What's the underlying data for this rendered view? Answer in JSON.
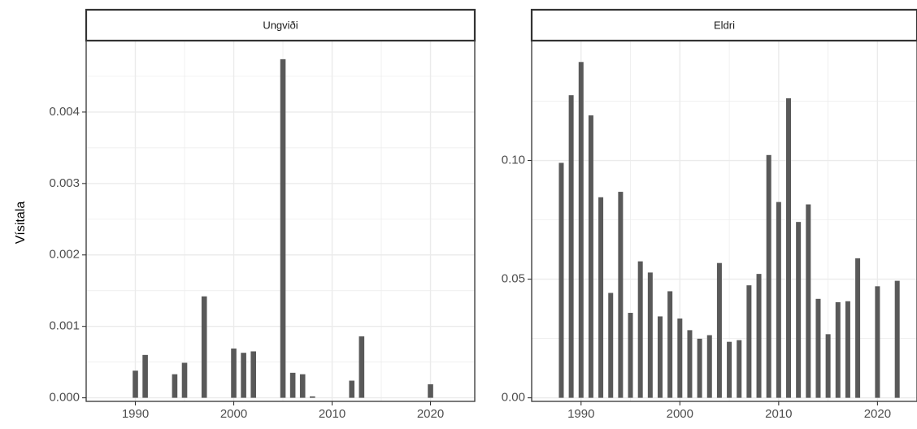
{
  "chart_data": {
    "type": "bar",
    "ylabel": "Vísitala",
    "xlabel": "",
    "panels": [
      {
        "title": "Ungviði",
        "xlim": [
          1985.0,
          2024.5
        ],
        "ylim": [
          -5e-05,
          0.005
        ],
        "xticks": [
          1990,
          2000,
          2010,
          2020
        ],
        "xtick_labels": [
          "1990",
          "2000",
          "2010",
          "2020"
        ],
        "yticks": [
          0,
          0.001,
          0.002,
          0.003,
          0.004
        ],
        "ytick_labels": [
          "0.000",
          "0.001",
          "0.002",
          "0.003",
          "0.004"
        ],
        "points": [
          {
            "year": 1990,
            "value": 0.00038
          },
          {
            "year": 1991,
            "value": 0.0006
          },
          {
            "year": 1994,
            "value": 0.00033
          },
          {
            "year": 1995,
            "value": 0.00049
          },
          {
            "year": 1997,
            "value": 0.00142
          },
          {
            "year": 2000,
            "value": 0.00069
          },
          {
            "year": 2001,
            "value": 0.00063
          },
          {
            "year": 2002,
            "value": 0.00065
          },
          {
            "year": 2005,
            "value": 0.00474
          },
          {
            "year": 2006,
            "value": 0.00035
          },
          {
            "year": 2007,
            "value": 0.00033
          },
          {
            "year": 2008,
            "value": 2e-05
          },
          {
            "year": 2012,
            "value": 0.00024
          },
          {
            "year": 2013,
            "value": 0.00086
          },
          {
            "year": 2020,
            "value": 0.00019
          }
        ]
      },
      {
        "title": "Eldri",
        "xlim": [
          1985.0,
          2024.0
        ],
        "ylim": [
          -0.0015,
          0.1505
        ],
        "xticks": [
          1990,
          2000,
          2010,
          2020
        ],
        "xtick_labels": [
          "1990",
          "2000",
          "2010",
          "2020"
        ],
        "yticks": [
          0,
          0.05,
          0.1
        ],
        "ytick_labels": [
          "0.00",
          "0.05",
          "0.10"
        ],
        "points": [
          {
            "year": 1988,
            "value": 0.099
          },
          {
            "year": 1989,
            "value": 0.1275
          },
          {
            "year": 1990,
            "value": 0.1415
          },
          {
            "year": 1991,
            "value": 0.119
          },
          {
            "year": 1992,
            "value": 0.0845
          },
          {
            "year": 1993,
            "value": 0.0442
          },
          {
            "year": 1994,
            "value": 0.0868
          },
          {
            "year": 1995,
            "value": 0.0358
          },
          {
            "year": 1996,
            "value": 0.0575
          },
          {
            "year": 1997,
            "value": 0.0528
          },
          {
            "year": 1998,
            "value": 0.0343
          },
          {
            "year": 1999,
            "value": 0.0449
          },
          {
            "year": 2000,
            "value": 0.0334
          },
          {
            "year": 2001,
            "value": 0.0285
          },
          {
            "year": 2002,
            "value": 0.0249
          },
          {
            "year": 2003,
            "value": 0.0264
          },
          {
            "year": 2004,
            "value": 0.0568
          },
          {
            "year": 2005,
            "value": 0.0236
          },
          {
            "year": 2006,
            "value": 0.0243
          },
          {
            "year": 2007,
            "value": 0.0474
          },
          {
            "year": 2008,
            "value": 0.0522
          },
          {
            "year": 2009,
            "value": 0.1023
          },
          {
            "year": 2010,
            "value": 0.0825
          },
          {
            "year": 2011,
            "value": 0.1262
          },
          {
            "year": 2012,
            "value": 0.0741
          },
          {
            "year": 2013,
            "value": 0.0815
          },
          {
            "year": 2014,
            "value": 0.0417
          },
          {
            "year": 2015,
            "value": 0.0268
          },
          {
            "year": 2016,
            "value": 0.0403
          },
          {
            "year": 2017,
            "value": 0.0407
          },
          {
            "year": 2018,
            "value": 0.0588
          },
          {
            "year": 2020,
            "value": 0.047
          },
          {
            "year": 2022,
            "value": 0.0493
          }
        ]
      }
    ],
    "grid": true,
    "colors": {
      "bar": "#595959",
      "grid": "#ebebeb",
      "panel_border": "#333333",
      "strip_fill": "#ffffff"
    }
  }
}
